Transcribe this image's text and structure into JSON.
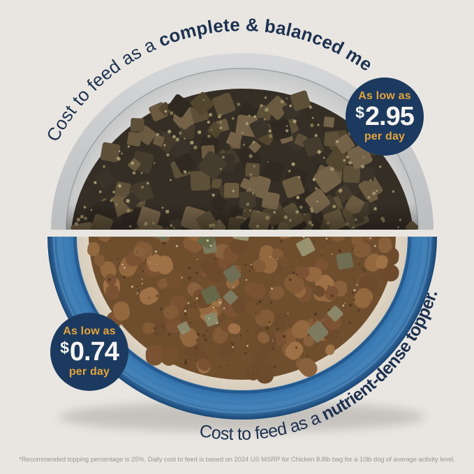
{
  "colors": {
    "background": "#e9e6e1",
    "badge_navy": "#1c3a5f",
    "accent_gold": "#e4a43d",
    "price_white": "#f6f4f1",
    "caption_navy": "#1d3150",
    "bowl_blue": "#2d6aa3",
    "footnote_gray": "#9b9791"
  },
  "top_section": {
    "caption": {
      "regular": "Cost to feed as a ",
      "bold": "complete & balanced meal."
    },
    "badge": {
      "as_low_as": "As low as",
      "currency": "$",
      "amount": "2.95",
      "per_day": "per day"
    }
  },
  "bottom_section": {
    "caption": {
      "regular": "Cost to feed as a ",
      "bold": "nutrient-dense topper.",
      "footnote_marker": " *"
    },
    "badge": {
      "as_low_as": "As low as",
      "currency": "$",
      "amount": "0.74",
      "per_day": "per day"
    }
  },
  "footnote": "*Recommended topping percentage is 25%. Daily cost to feed is based on 2024 US MSRP for Chicken 8.8lb bag for a 10lb dog of average activity level."
}
